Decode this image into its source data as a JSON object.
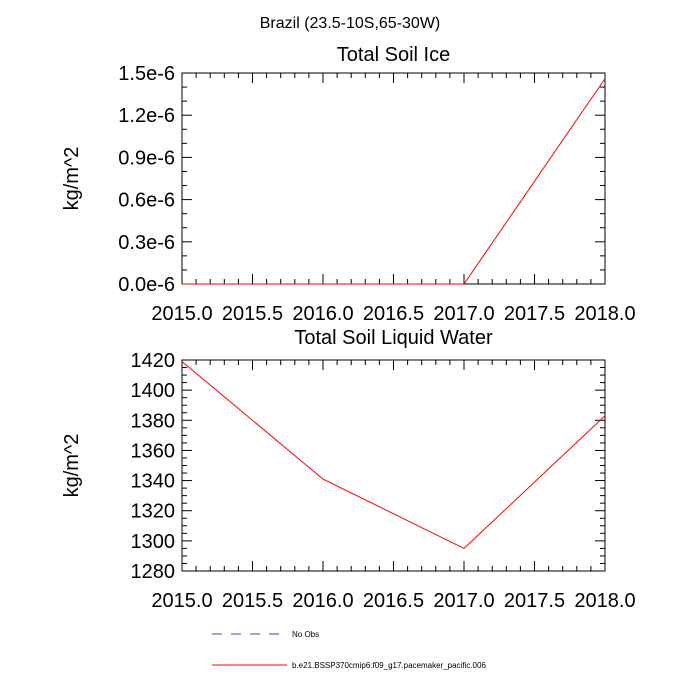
{
  "figure": {
    "title": "Brazil (23.5-10S,65-30W)"
  },
  "chart_data": [
    {
      "type": "line",
      "title": "Total Soil Ice",
      "xlabel": "",
      "ylabel": "kg/m^2",
      "xlim": [
        2015.0,
        2018.0
      ],
      "ylim": [
        0.0,
        1.5e-06
      ],
      "x_ticks": [
        "2015.0",
        "2015.5",
        "2016.0",
        "2016.5",
        "2017.0",
        "2017.5",
        "2018.0"
      ],
      "y_ticks": [
        "0.0e-6",
        "0.3e-6",
        "0.6e-6",
        "0.9e-6",
        "1.2e-6",
        "1.5e-6"
      ],
      "grid": false,
      "series": [
        {
          "name": "b.e21.BSSP370cmip6.f09_g17.pacemaker_pacific.006",
          "color": "#ff0000",
          "x": [
            2015.0,
            2016.0,
            2017.0,
            2018.0
          ],
          "y": [
            0.0,
            0.0,
            0.0,
            1.46e-06
          ]
        }
      ]
    },
    {
      "type": "line",
      "title": "Total Soil Liquid Water",
      "xlabel": "",
      "ylabel": "kg/m^2",
      "xlim": [
        2015.0,
        2018.0
      ],
      "ylim": [
        1280,
        1420
      ],
      "x_ticks": [
        "2015.0",
        "2015.5",
        "2016.0",
        "2016.5",
        "2017.0",
        "2017.5",
        "2018.0"
      ],
      "y_ticks": [
        "1280",
        "1300",
        "1320",
        "1340",
        "1360",
        "1380",
        "1400",
        "1420"
      ],
      "grid": false,
      "series": [
        {
          "name": "b.e21.BSSP370cmip6.f09_g17.pacemaker_pacific.006",
          "color": "#ff0000",
          "x": [
            2015.0,
            2016.0,
            2017.0,
            2018.0
          ],
          "y": [
            1419,
            1341,
            1295,
            1383
          ]
        }
      ]
    }
  ],
  "legend": {
    "placement": "bottom",
    "items": [
      {
        "label": "No Obs",
        "color": "#4a3fb0",
        "dashed": true
      },
      {
        "label": "b.e21.BSSP370cmip6.f09_g17.pacemaker_pacific.006",
        "color": "#ff0000",
        "dashed": false
      }
    ]
  }
}
